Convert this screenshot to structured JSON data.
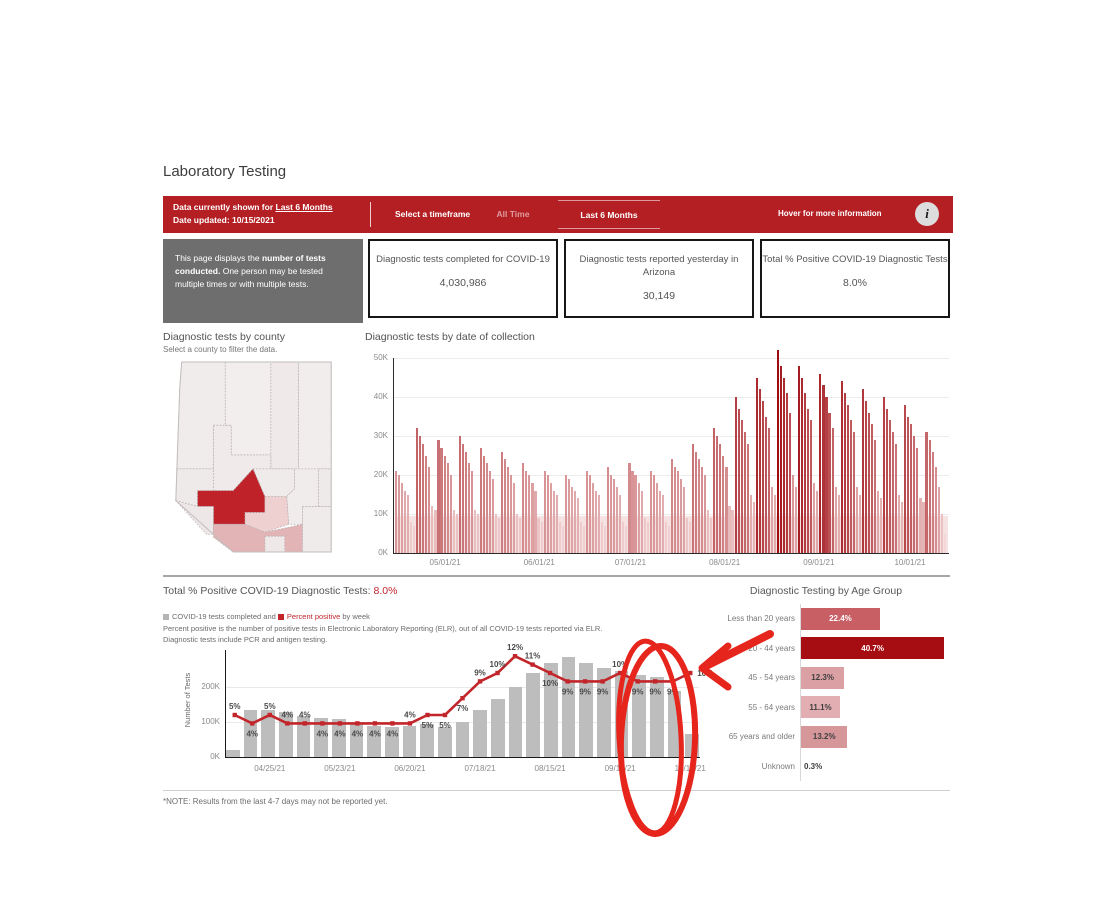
{
  "page": {
    "title": "Laboratory Testing",
    "note": "*NOTE: Results from the last 4-7 days may not be reported yet."
  },
  "header": {
    "bg_color": "#b41f24",
    "shown_prefix": "Data currently shown for ",
    "shown_value": "Last 6 Months",
    "date_updated": "Date updated: 10/15/2021",
    "select_label": "Select a timeframe",
    "tab_all_time": "All Time",
    "tab_last6": "Last 6 Months",
    "hover_text": "Hover for more information",
    "info_icon_glyph": "i"
  },
  "info_box": {
    "plain1": "This page displays the ",
    "bold1": "number of tests conducted.",
    "plain2": " One person may be tested multiple times or with multiple tests."
  },
  "stats": [
    {
      "label": "Diagnostic tests completed for COVID-19",
      "value": "4,030,986"
    },
    {
      "label": "Diagnostic tests reported yesterday in Arizona",
      "value": "30,149"
    },
    {
      "label": "Total % Positive COVID-19 Diagnostic Tests",
      "value": "8.0%"
    }
  ],
  "county_section": {
    "title": "Diagnostic tests by county",
    "subtitle": "Select a county to filter the data.",
    "fills": {
      "mohave": "#f1ecec",
      "coconino": "#f3eeee",
      "navajo": "#efe9e9",
      "apache": "#f2eded",
      "yavapai": "#f0eaea",
      "la_paz": "#efeaea",
      "gila": "#f0ebeb",
      "graham": "#f1ecec",
      "greenlee": "#efeaea",
      "cochise": "#f0ebeb",
      "santa_cruz": "#efe8e8",
      "yuma": "#eee7e7",
      "maricopa": "#bf2329",
      "pinal": "#eed0d1",
      "pima": "#e2b4b6"
    }
  },
  "daily_section": {
    "title": "Diagnostic tests by date of collection"
  },
  "positivity_section": {
    "title_prefix": "Total % Positive COVID-19 Diagnostic Tests: ",
    "title_value": "8.0%",
    "title_value_color": "#c2262b",
    "legend_sq1_color": "#b5b5b5",
    "legend_text1": "COVID-19 tests completed",
    "legend_and": " and ",
    "legend_sq2_color": "#c2262b",
    "legend_text2": "Percent positive",
    "legend_suffix": " by week",
    "desc1": "Percent positive is the number of positive tests in Electronic Laboratory Reporting (ELR), out of all COVID-19 tests reported via ELR.",
    "desc2": "Diagnostic tests include PCR and antigen testing.",
    "ylabel": "Number of Tests"
  },
  "age_section": {
    "title": "Diagnostic Testing by Age Group"
  },
  "chart_data": [
    {
      "id": "daily_tests",
      "type": "bar",
      "title": "Diagnostic tests by date of collection",
      "ylim_k": [
        0,
        50
      ],
      "ytick_labels": [
        "0K",
        "10K",
        "20K",
        "30K",
        "40K",
        "50K"
      ],
      "xtick_labels": [
        "05/01/21",
        "06/01/21",
        "07/01/21",
        "08/01/21",
        "09/01/21",
        "10/01/21"
      ],
      "xtick_day_index": [
        16,
        47,
        77,
        108,
        139,
        169
      ],
      "start_date": "04/15/21",
      "color_low": "#f4d8d8",
      "color_high": "#9e0c12",
      "background_band_k": 9.5,
      "background_band_color": "rgba(222,160,160,0.30)",
      "values_k": [
        21,
        20,
        18,
        16,
        15,
        8,
        7,
        32,
        30,
        28,
        25,
        22,
        12,
        11,
        29,
        27,
        25,
        23,
        20,
        11,
        10,
        30,
        28,
        26,
        23,
        21,
        11,
        10,
        27,
        25,
        23,
        21,
        19,
        10,
        9,
        26,
        24,
        22,
        20,
        18,
        10,
        9,
        23,
        21,
        20,
        18,
        16,
        9,
        8,
        21,
        20,
        18,
        16,
        15,
        8,
        7,
        20,
        19,
        17,
        16,
        14,
        8,
        7,
        21,
        20,
        18,
        16,
        15,
        8,
        7,
        22,
        20,
        19,
        17,
        15,
        8,
        7,
        23,
        21,
        20,
        18,
        16,
        9,
        8,
        21,
        20,
        18,
        16,
        15,
        8,
        7,
        24,
        22,
        21,
        19,
        17,
        9,
        8,
        28,
        26,
        24,
        22,
        20,
        11,
        9,
        32,
        30,
        28,
        25,
        22,
        12,
        11,
        40,
        37,
        34,
        31,
        28,
        15,
        13,
        45,
        42,
        39,
        35,
        32,
        17,
        15,
        52,
        48,
        45,
        41,
        36,
        20,
        17,
        48,
        45,
        41,
        37,
        34,
        18,
        16,
        46,
        43,
        40,
        36,
        32,
        17,
        15,
        44,
        41,
        38,
        34,
        31,
        17,
        15,
        42,
        39,
        36,
        33,
        29,
        16,
        14,
        40,
        37,
        34,
        31,
        28,
        15,
        13,
        38,
        35,
        33,
        30,
        27,
        14,
        13,
        31,
        29,
        26,
        22,
        17,
        10,
        5
      ]
    },
    {
      "id": "weekly_positivity",
      "type": "bar+line",
      "ylabel": "Number of Tests",
      "ytick_labels": [
        "0K",
        "100K",
        "200K"
      ],
      "xtick_labels": [
        "04/25/21",
        "05/23/21",
        "06/20/21",
        "07/18/21",
        "08/15/21",
        "09/12/21",
        "10/10/21"
      ],
      "xtick_week_index": [
        2,
        6,
        10,
        14,
        18,
        22,
        26
      ],
      "bar_color": "#bdbdbd",
      "line_color": "#c2262b",
      "bars_tests_k": [
        20,
        135,
        135,
        128,
        118,
        112,
        108,
        95,
        88,
        85,
        88,
        95,
        85,
        100,
        135,
        165,
        200,
        240,
        270,
        285,
        270,
        255,
        245,
        235,
        230,
        190,
        65
      ],
      "line_percent_positive": [
        5,
        4,
        5,
        4,
        4,
        4,
        4,
        4,
        4,
        4,
        4,
        5,
        5,
        7,
        9,
        10,
        12,
        11,
        10,
        9,
        9,
        9,
        10,
        9,
        9,
        9,
        10
      ],
      "label_position": [
        "above",
        "below",
        "above",
        "above",
        "above",
        "below",
        "below",
        "below",
        "below",
        "below",
        "above",
        "below",
        "below",
        "below",
        "above",
        "above",
        "above",
        "above",
        "below",
        "below",
        "below",
        "below",
        "above",
        "below",
        "below",
        "below",
        "right"
      ]
    },
    {
      "id": "age_groups",
      "type": "bar-horizontal",
      "title": "Diagnostic Testing by Age Group",
      "categories": [
        "Less than 20 years",
        "20 - 44 years",
        "45 - 54 years",
        "55 - 64 years",
        "65 years and older",
        "Unknown"
      ],
      "values_pct": [
        22.4,
        40.7,
        12.3,
        11.1,
        13.2,
        0.3
      ],
      "labels": [
        "22.4%",
        "40.7%",
        "12.3%",
        "11.1%",
        "13.2%",
        "0.3%"
      ],
      "bar_colors": [
        "#c75f64",
        "#a50d12",
        "#dba0a3",
        "#e2aeb1",
        "#d6979b",
        "none"
      ],
      "label_white": [
        true,
        true,
        false,
        false,
        false,
        false
      ]
    }
  ],
  "annotation": {
    "color": "#e6251c"
  }
}
